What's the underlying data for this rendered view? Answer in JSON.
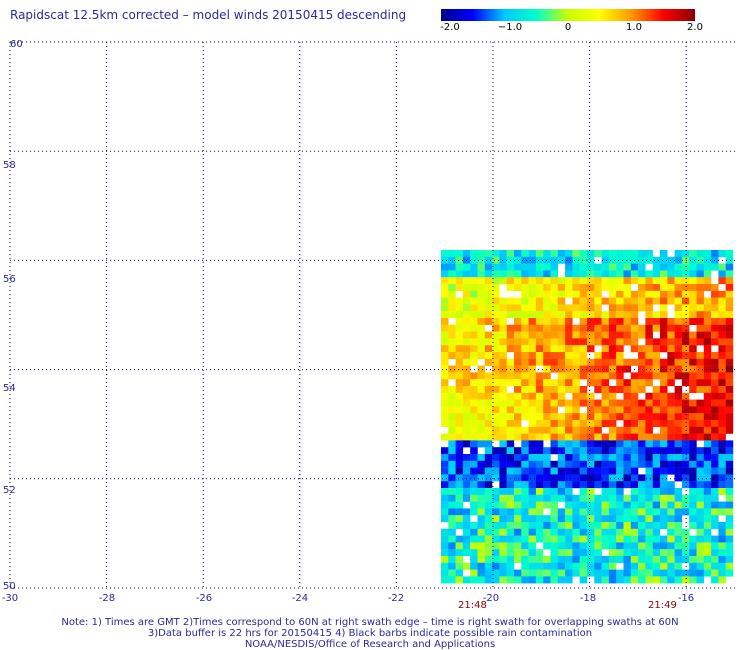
{
  "title": "Rapidscat 12.5km corrected – model winds 20150415 descending",
  "colorbar": {
    "labels": [
      "-2.0",
      "−1.0",
      "0",
      "1.0",
      "2.0"
    ],
    "min": -2.0,
    "max": 2.0,
    "stops": [
      "#00008b",
      "#0000ff",
      "#00c8ff",
      "#00ffcc",
      "#c8ff00",
      "#ffff00",
      "#ff9900",
      "#ff0000",
      "#8b0000"
    ]
  },
  "map": {
    "lon_labels": [
      "-30",
      "-28",
      "-26",
      "-24",
      "-22",
      "-20",
      "-18",
      "-16"
    ],
    "lat_labels": [
      "60",
      "58",
      "56",
      "54",
      "52",
      "50"
    ],
    "grid_color": "#000080",
    "swath_lon_range": [
      -21,
      -15
    ],
    "swath_lat_range": [
      50,
      56.5
    ]
  },
  "time_labels": [
    "21:48",
    "21:49"
  ],
  "notes": [
    "Note: 1) Times are GMT 2)Times correspond to 60N at right swath edge – time is right swath for overlapping swaths at 60N",
    "3)Data buffer is 22 hrs for 20150415 4) Black barbs indicate possible rain contamination",
    "NOAA/NESDIS/Office of Research and Applications"
  ]
}
